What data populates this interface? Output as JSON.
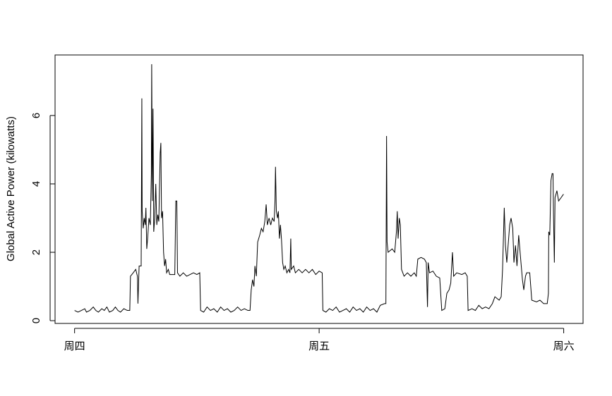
{
  "chart_data": {
    "type": "line",
    "ylabel": "Global Active Power (kilowatts)",
    "xlim": [
      -115,
      2994
    ],
    "ylim": [
      -0.08,
      7.77
    ],
    "xticks": [
      {
        "value": 0,
        "label": "周四"
      },
      {
        "value": 1440,
        "label": "周五"
      },
      {
        "value": 2880,
        "label": "周六"
      }
    ],
    "yticks": [
      0,
      2,
      4,
      6
    ],
    "series": [
      {
        "color": "#000000",
        "x": [
          0,
          20,
          40,
          60,
          70,
          90,
          110,
          125,
          140,
          160,
          175,
          190,
          205,
          225,
          240,
          255,
          270,
          290,
          310,
          325,
          329,
          345,
          360,
          370,
          373,
          380,
          392,
          396,
          398,
          404,
          410,
          416,
          420,
          425,
          430,
          438,
          446,
          452,
          454,
          458,
          462,
          466,
          472,
          478,
          484,
          490,
          496,
          504,
          508,
          512,
          518,
          524,
          530,
          536,
          542,
          552,
          560,
          590,
          596,
          602,
          606,
          620,
          640,
          660,
          680,
          700,
          720,
          737,
          742,
          760,
          780,
          800,
          820,
          840,
          860,
          880,
          900,
          920,
          940,
          960,
          980,
          1000,
          1020,
          1033,
          1040,
          1048,
          1056,
          1062,
          1070,
          1078,
          1090,
          1100,
          1110,
          1120,
          1128,
          1135,
          1145,
          1155,
          1165,
          1175,
          1180,
          1183,
          1188,
          1195,
          1200,
          1206,
          1212,
          1218,
          1225,
          1232,
          1240,
          1250,
          1260,
          1268,
          1273,
          1276,
          1290,
          1300,
          1320,
          1340,
          1360,
          1380,
          1400,
          1420,
          1440,
          1458,
          1462,
          1480,
          1500,
          1520,
          1540,
          1560,
          1580,
          1600,
          1620,
          1640,
          1660,
          1680,
          1700,
          1720,
          1740,
          1760,
          1780,
          1800,
          1825,
          1833,
          1837,
          1840,
          1846,
          1870,
          1885,
          1895,
          1900,
          1905,
          1912,
          1918,
          1925,
          1940,
          1960,
          1980,
          2000,
          2012,
          2021,
          2040,
          2060,
          2071,
          2078,
          2082,
          2090,
          2110,
          2130,
          2150,
          2162,
          2180,
          2192,
          2205,
          2215,
          2225,
          2232,
          2250,
          2280,
          2300,
          2312,
          2317,
          2340,
          2360,
          2380,
          2400,
          2420,
          2440,
          2460,
          2475,
          2500,
          2512,
          2520,
          2530,
          2537,
          2545,
          2562,
          2570,
          2580,
          2587,
          2596,
          2605,
          2615,
          2625,
          2637,
          2645,
          2655,
          2662,
          2680,
          2692,
          2720,
          2740,
          2762,
          2783,
          2790,
          2792,
          2798,
          2805,
          2812,
          2817,
          2820,
          2825,
          2829,
          2840,
          2850,
          2865,
          2879
        ],
        "values": [
          0.3,
          0.25,
          0.3,
          0.35,
          0.25,
          0.3,
          0.4,
          0.3,
          0.25,
          0.35,
          0.3,
          0.4,
          0.25,
          0.3,
          0.4,
          0.3,
          0.25,
          0.35,
          0.3,
          0.3,
          1.3,
          1.4,
          1.5,
          1.3,
          0.5,
          1.6,
          1.6,
          6.5,
          3.2,
          2.7,
          3.0,
          2.8,
          3.3,
          2.1,
          2.4,
          3.0,
          2.8,
          4.3,
          7.5,
          3.5,
          6.2,
          2.6,
          3.0,
          4.0,
          2.8,
          3.1,
          2.9,
          4.9,
          5.2,
          3.0,
          3.2,
          2.0,
          1.6,
          1.8,
          1.4,
          1.5,
          1.35,
          1.35,
          3.5,
          3.5,
          1.4,
          1.3,
          1.4,
          1.3,
          1.35,
          1.4,
          1.35,
          1.4,
          0.3,
          0.25,
          0.4,
          0.3,
          0.35,
          0.25,
          0.4,
          0.3,
          0.35,
          0.25,
          0.3,
          0.4,
          0.3,
          0.35,
          0.3,
          0.3,
          0.9,
          1.2,
          1.0,
          1.6,
          1.3,
          2.3,
          2.5,
          2.7,
          2.6,
          2.9,
          3.4,
          2.8,
          3.0,
          2.8,
          3.0,
          2.9,
          3.5,
          4.5,
          3.2,
          3.0,
          3.2,
          2.4,
          2.8,
          2.4,
          1.7,
          1.5,
          1.6,
          1.4,
          1.5,
          1.4,
          2.4,
          1.5,
          1.6,
          1.4,
          1.5,
          1.4,
          1.5,
          1.4,
          1.5,
          1.35,
          1.45,
          1.4,
          0.3,
          0.25,
          0.35,
          0.3,
          0.4,
          0.25,
          0.3,
          0.35,
          0.25,
          0.4,
          0.3,
          0.35,
          0.25,
          0.4,
          0.3,
          0.35,
          0.25,
          0.45,
          0.5,
          0.5,
          5.4,
          2.3,
          2.0,
          2.1,
          2.0,
          2.6,
          3.2,
          2.4,
          3.0,
          2.8,
          1.5,
          1.3,
          1.4,
          1.3,
          1.4,
          1.3,
          1.8,
          1.85,
          1.8,
          1.7,
          0.4,
          1.7,
          1.4,
          1.45,
          1.3,
          1.25,
          0.3,
          0.35,
          0.8,
          0.9,
          1.1,
          2.0,
          1.3,
          1.4,
          1.35,
          1.4,
          1.3,
          0.3,
          0.35,
          0.3,
          0.45,
          0.35,
          0.4,
          0.35,
          0.5,
          0.7,
          0.6,
          0.7,
          1.5,
          3.3,
          2.2,
          1.7,
          2.8,
          3.0,
          2.7,
          1.7,
          2.2,
          1.6,
          2.5,
          1.9,
          1.2,
          0.9,
          1.3,
          1.4,
          1.4,
          0.6,
          0.55,
          0.6,
          0.5,
          0.5,
          0.8,
          2.6,
          2.5,
          4.1,
          4.3,
          4.3,
          3.1,
          1.7,
          3.6,
          3.8,
          3.5,
          3.6,
          3.7
        ]
      }
    ]
  }
}
